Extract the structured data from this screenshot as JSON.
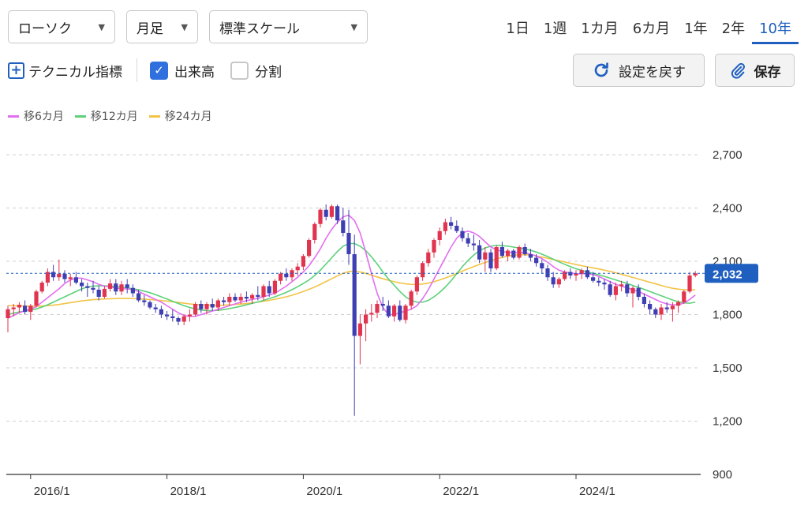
{
  "toolbar": {
    "chart_style": "ローソク",
    "interval": "月足",
    "scale": "標準スケール",
    "periods": [
      "1日",
      "1週",
      "1カ月",
      "6カ月",
      "1年",
      "2年",
      "10年"
    ],
    "active_period": "10年"
  },
  "options": {
    "technical_label": "テクニカル指標",
    "volume_label": "出来高",
    "volume_checked": true,
    "split_label": "分割",
    "split_checked": false,
    "reset_label": "設定を戻す",
    "save_label": "保存"
  },
  "colors": {
    "accent": "#1f5fbf",
    "up": "#e0344f",
    "down": "#3f3fb4",
    "ma6": "#e36ef0",
    "ma12": "#5cd17a",
    "ma24": "#f2c446",
    "last_price_badge": "#1f5fbf"
  },
  "chart_data": {
    "type": "candlestick",
    "title": "",
    "xlabel": "",
    "ylabel": "",
    "ylim": [
      900,
      2700
    ],
    "yticks": [
      "2,700",
      "2,400",
      "2,100",
      "1,800",
      "1,500",
      "1,200",
      "900"
    ],
    "xticks": [
      "2016/1",
      "2018/1",
      "2020/1",
      "2022/1",
      "2024/1"
    ],
    "last_price": "2,032",
    "legend": [
      {
        "name": "移6カ月",
        "color": "#e36ef0"
      },
      {
        "name": "移12カ月",
        "color": "#5cd17a"
      },
      {
        "name": "移24カ月",
        "color": "#f2c446"
      }
    ],
    "candles": [
      [
        1780,
        1850,
        1700,
        1830
      ],
      [
        1830,
        1860,
        1790,
        1840
      ],
      [
        1840,
        1870,
        1810,
        1855
      ],
      [
        1850,
        1880,
        1800,
        1815
      ],
      [
        1815,
        1860,
        1770,
        1850
      ],
      [
        1850,
        1940,
        1840,
        1930
      ],
      [
        1930,
        1990,
        1920,
        1980
      ],
      [
        1980,
        2060,
        1960,
        2040
      ],
      [
        2040,
        2080,
        1990,
        2010
      ],
      [
        2010,
        2110,
        1990,
        2030
      ],
      [
        2030,
        2050,
        1980,
        2000
      ],
      [
        2000,
        2030,
        1960,
        2010
      ],
      [
        2010,
        2040,
        1970,
        1980
      ],
      [
        1980,
        2000,
        1930,
        1960
      ],
      [
        1960,
        1980,
        1900,
        1950
      ],
      [
        1950,
        1990,
        1920,
        1940
      ],
      [
        1940,
        1960,
        1880,
        1900
      ],
      [
        1900,
        1960,
        1890,
        1945
      ],
      [
        1945,
        2000,
        1930,
        1975
      ],
      [
        1975,
        2000,
        1910,
        1930
      ],
      [
        1930,
        1990,
        1910,
        1970
      ],
      [
        1970,
        2000,
        1920,
        1950
      ],
      [
        1950,
        1970,
        1900,
        1920
      ],
      [
        1920,
        1940,
        1870,
        1880
      ],
      [
        1880,
        1910,
        1850,
        1870
      ],
      [
        1870,
        1880,
        1830,
        1840
      ],
      [
        1840,
        1860,
        1810,
        1830
      ],
      [
        1830,
        1850,
        1780,
        1800
      ],
      [
        1800,
        1820,
        1770,
        1790
      ],
      [
        1790,
        1830,
        1760,
        1780
      ],
      [
        1780,
        1790,
        1740,
        1760
      ],
      [
        1760,
        1800,
        1740,
        1790
      ],
      [
        1790,
        1830,
        1760,
        1800
      ],
      [
        1800,
        1870,
        1790,
        1860
      ],
      [
        1860,
        1880,
        1810,
        1830
      ],
      [
        1830,
        1870,
        1800,
        1860
      ],
      [
        1860,
        1890,
        1820,
        1840
      ],
      [
        1840,
        1890,
        1820,
        1880
      ],
      [
        1880,
        1900,
        1850,
        1870
      ],
      [
        1870,
        1920,
        1850,
        1900
      ],
      [
        1900,
        1920,
        1870,
        1880
      ],
      [
        1880,
        1920,
        1860,
        1900
      ],
      [
        1900,
        1930,
        1870,
        1890
      ],
      [
        1890,
        1920,
        1860,
        1910
      ],
      [
        1910,
        1960,
        1880,
        1900
      ],
      [
        1900,
        1970,
        1880,
        1960
      ],
      [
        1960,
        1990,
        1900,
        1920
      ],
      [
        1920,
        2000,
        1910,
        1990
      ],
      [
        1990,
        2040,
        1970,
        2030
      ],
      [
        2030,
        2060,
        1990,
        2010
      ],
      [
        2010,
        2060,
        1990,
        2050
      ],
      [
        2050,
        2090,
        2020,
        2070
      ],
      [
        2070,
        2140,
        2050,
        2130
      ],
      [
        2130,
        2230,
        2120,
        2220
      ],
      [
        2220,
        2320,
        2200,
        2310
      ],
      [
        2310,
        2400,
        2290,
        2390
      ],
      [
        2390,
        2420,
        2330,
        2350
      ],
      [
        2350,
        2420,
        2340,
        2410
      ],
      [
        2410,
        2420,
        2310,
        2330
      ],
      [
        2330,
        2400,
        2240,
        2260
      ],
      [
        2260,
        2390,
        2080,
        2140
      ],
      [
        2140,
        2250,
        1230,
        1680
      ],
      [
        1680,
        1800,
        1520,
        1750
      ],
      [
        1750,
        1830,
        1650,
        1800
      ],
      [
        1800,
        1860,
        1760,
        1810
      ],
      [
        1810,
        1880,
        1780,
        1860
      ],
      [
        1860,
        1900,
        1820,
        1850
      ],
      [
        1850,
        1880,
        1780,
        1790
      ],
      [
        1790,
        1860,
        1760,
        1850
      ],
      [
        1850,
        1880,
        1760,
        1770
      ],
      [
        1770,
        1860,
        1750,
        1850
      ],
      [
        1850,
        1940,
        1830,
        1930
      ],
      [
        1930,
        2020,
        1910,
        2010
      ],
      [
        2010,
        2100,
        1990,
        2090
      ],
      [
        2090,
        2170,
        2070,
        2150
      ],
      [
        2150,
        2230,
        2120,
        2220
      ],
      [
        2220,
        2290,
        2190,
        2270
      ],
      [
        2270,
        2340,
        2250,
        2320
      ],
      [
        2320,
        2350,
        2280,
        2300
      ],
      [
        2300,
        2330,
        2260,
        2270
      ],
      [
        2270,
        2290,
        2210,
        2230
      ],
      [
        2230,
        2260,
        2180,
        2200
      ],
      [
        2200,
        2250,
        2160,
        2190
      ],
      [
        2190,
        2220,
        2090,
        2110
      ],
      [
        2110,
        2180,
        2040,
        2150
      ],
      [
        2150,
        2170,
        2040,
        2060
      ],
      [
        2060,
        2190,
        2050,
        2180
      ],
      [
        2180,
        2210,
        2120,
        2130
      ],
      [
        2130,
        2170,
        2100,
        2160
      ],
      [
        2160,
        2170,
        2110,
        2120
      ],
      [
        2120,
        2190,
        2110,
        2180
      ],
      [
        2180,
        2200,
        2130,
        2140
      ],
      [
        2140,
        2170,
        2100,
        2120
      ],
      [
        2120,
        2140,
        2070,
        2090
      ],
      [
        2090,
        2110,
        2030,
        2060
      ],
      [
        2060,
        2080,
        1990,
        2010
      ],
      [
        2010,
        2040,
        1950,
        1970
      ],
      [
        1970,
        2010,
        1950,
        2000
      ],
      [
        2000,
        2050,
        1990,
        2040
      ],
      [
        2040,
        2060,
        2000,
        2020
      ],
      [
        2020,
        2050,
        1990,
        2030
      ],
      [
        2030,
        2060,
        2000,
        2050
      ],
      [
        2050,
        2070,
        2000,
        2010
      ],
      [
        2010,
        2040,
        1980,
        1990
      ],
      [
        1990,
        2010,
        1960,
        1980
      ],
      [
        1980,
        2000,
        1940,
        1970
      ],
      [
        1970,
        1990,
        1900,
        1910
      ],
      [
        1910,
        1980,
        1880,
        1960
      ],
      [
        1960,
        1990,
        1930,
        1970
      ],
      [
        1970,
        1990,
        1900,
        1920
      ],
      [
        1920,
        1960,
        1840,
        1950
      ],
      [
        1950,
        1970,
        1880,
        1900
      ],
      [
        1900,
        1920,
        1840,
        1860
      ],
      [
        1860,
        1880,
        1800,
        1830
      ],
      [
        1830,
        1840,
        1780,
        1800
      ],
      [
        1800,
        1860,
        1770,
        1840
      ],
      [
        1840,
        1870,
        1810,
        1830
      ],
      [
        1830,
        1870,
        1760,
        1850
      ],
      [
        1850,
        1880,
        1810,
        1870
      ],
      [
        1870,
        1940,
        1860,
        1930
      ],
      [
        1930,
        2040,
        1920,
        2020
      ],
      [
        2020,
        2045,
        2010,
        2032
      ]
    ],
    "ma6": [
      1780,
      1795,
      1810,
      1822,
      1830,
      1845,
      1870,
      1895,
      1920,
      1945,
      1975,
      1995,
      2005,
      2005,
      1995,
      1985,
      1970,
      1960,
      1955,
      1950,
      1945,
      1945,
      1940,
      1930,
      1915,
      1900,
      1885,
      1870,
      1850,
      1830,
      1810,
      1795,
      1790,
      1790,
      1800,
      1810,
      1820,
      1830,
      1840,
      1850,
      1860,
      1870,
      1878,
      1885,
      1892,
      1900,
      1910,
      1920,
      1940,
      1960,
      1985,
      2010,
      2040,
      2075,
      2120,
      2170,
      2230,
      2280,
      2320,
      2350,
      2360,
      2330,
      2260,
      2150,
      2030,
      1920,
      1840,
      1800,
      1800,
      1810,
      1820,
      1830,
      1850,
      1890,
      1940,
      2000,
      2060,
      2120,
      2180,
      2230,
      2260,
      2270,
      2260,
      2240,
      2210,
      2180,
      2165,
      2155,
      2150,
      2150,
      2150,
      2148,
      2140,
      2130,
      2115,
      2095,
      2070,
      2050,
      2040,
      2035,
      2030,
      2030,
      2030,
      2025,
      2015,
      2000,
      1985,
      1970,
      1960,
      1950,
      1940,
      1930,
      1915,
      1900,
      1885,
      1870,
      1860,
      1855,
      1855,
      1865,
      1885,
      1910
    ],
    "ma12": [
      1800,
      1808,
      1815,
      1820,
      1825,
      1832,
      1842,
      1855,
      1870,
      1885,
      1900,
      1915,
      1930,
      1945,
      1955,
      1960,
      1962,
      1962,
      1960,
      1958,
      1955,
      1950,
      1945,
      1940,
      1932,
      1923,
      1912,
      1900,
      1888,
      1875,
      1862,
      1850,
      1840,
      1832,
      1826,
      1822,
      1822,
      1824,
      1828,
      1834,
      1840,
      1847,
      1855,
      1863,
      1871,
      1880,
      1890,
      1900,
      1912,
      1925,
      1940,
      1957,
      1975,
      1995,
      2020,
      2050,
      2085,
      2120,
      2155,
      2185,
      2200,
      2200,
      2185,
      2160,
      2125,
      2085,
      2040,
      2000,
      1965,
      1930,
      1900,
      1880,
      1870,
      1870,
      1880,
      1900,
      1925,
      1955,
      1990,
      2030,
      2070,
      2105,
      2135,
      2160,
      2175,
      2185,
      2190,
      2188,
      2185,
      2180,
      2175,
      2170,
      2162,
      2152,
      2140,
      2127,
      2112,
      2097,
      2083,
      2070,
      2058,
      2048,
      2040,
      2032,
      2024,
      2015,
      2005,
      1995,
      1985,
      1975,
      1964,
      1953,
      1942,
      1930,
      1918,
      1906,
      1894,
      1882,
      1872,
      1866,
      1864,
      1870
    ],
    "ma24": [
      1850,
      1850,
      1849,
      1848,
      1847,
      1847,
      1848,
      1850,
      1853,
      1857,
      1862,
      1867,
      1872,
      1877,
      1881,
      1884,
      1886,
      1888,
      1889,
      1890,
      1891,
      1891,
      1890,
      1889,
      1887,
      1885,
      1882,
      1879,
      1876,
      1872,
      1868,
      1864,
      1860,
      1857,
      1855,
      1853,
      1852,
      1852,
      1853,
      1855,
      1857,
      1859,
      1862,
      1866,
      1870,
      1875,
      1880,
      1886,
      1893,
      1900,
      1909,
      1919,
      1930,
      1942,
      1955,
      1970,
      1986,
      2002,
      2018,
      2032,
      2042,
      2045,
      2040,
      2032,
      2022,
      2012,
      2002,
      1993,
      1985,
      1978,
      1973,
      1970,
      1970,
      1972,
      1977,
      1985,
      1995,
      2006,
      2018,
      2031,
      2045,
      2058,
      2070,
      2082,
      2093,
      2104,
      2114,
      2122,
      2129,
      2134,
      2137,
      2137,
      2135,
      2130,
      2124,
      2117,
      2110,
      2103,
      2096,
      2089,
      2082,
      2075,
      2069,
      2063,
      2057,
      2050,
      2043,
      2035,
      2027,
      2018,
      2009,
      2000,
      1991,
      1982,
      1973,
      1964,
      1955,
      1948,
      1943,
      1940,
      1939,
      1940
    ]
  }
}
